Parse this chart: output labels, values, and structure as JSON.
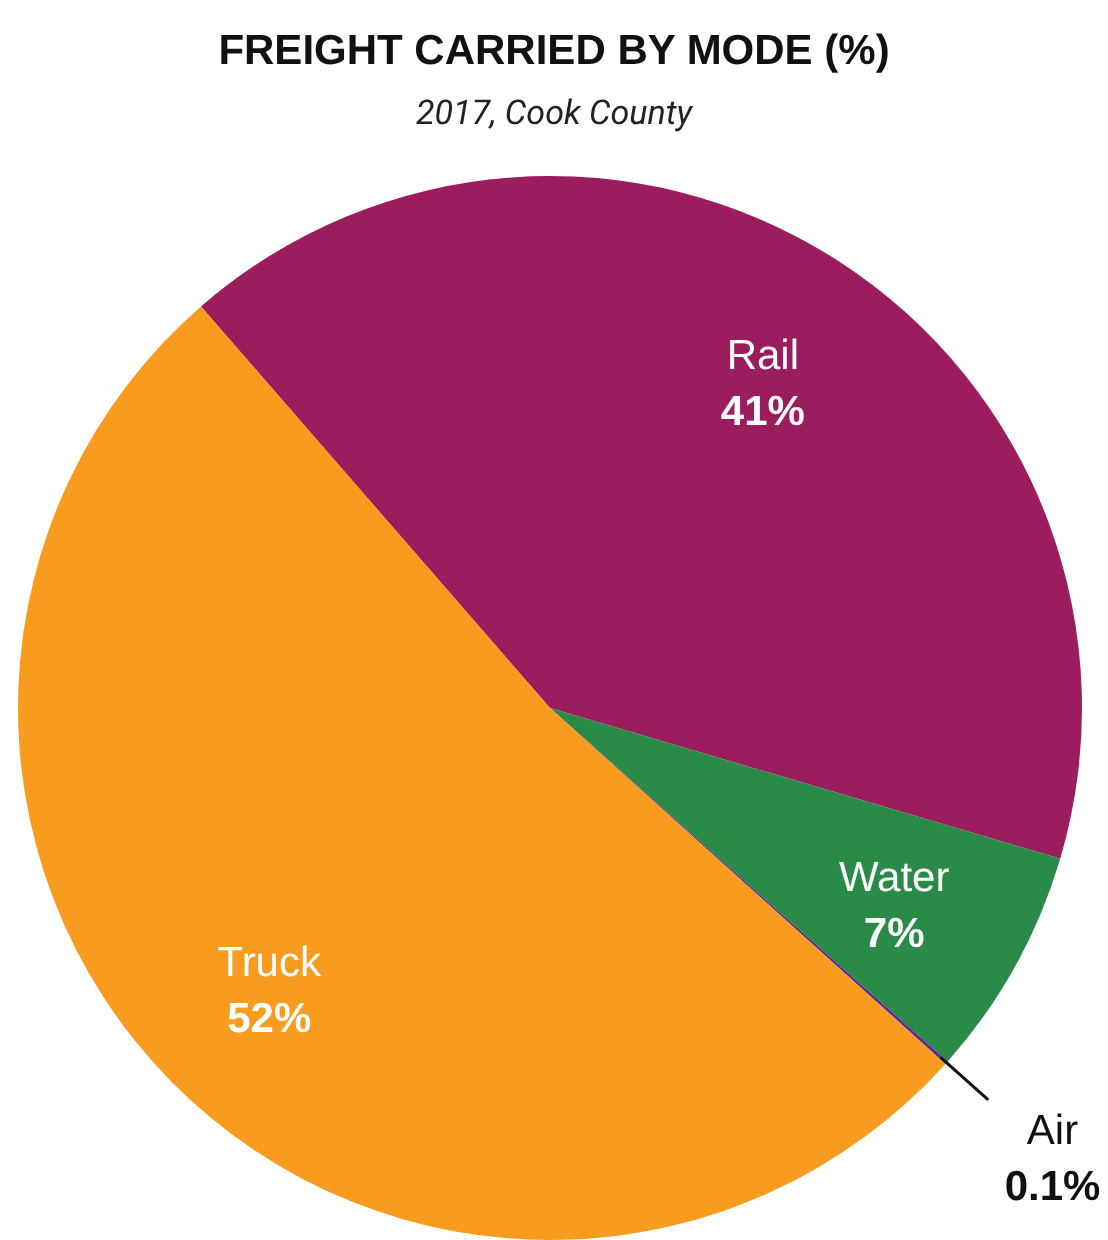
{
  "chart_data": {
    "type": "pie",
    "title": "FREIGHT CARRIED BY MODE (%)",
    "subtitle": "2017, Cook County",
    "categories": [
      "Rail",
      "Water",
      "Air",
      "Truck"
    ],
    "values": [
      41,
      7,
      0.1,
      52
    ],
    "colors": [
      "#9c1d5e",
      "#2a8a48",
      "#5b2d8e",
      "#f89c20"
    ],
    "value_labels": [
      "41%",
      "7%",
      "0.1%",
      "52%"
    ]
  }
}
